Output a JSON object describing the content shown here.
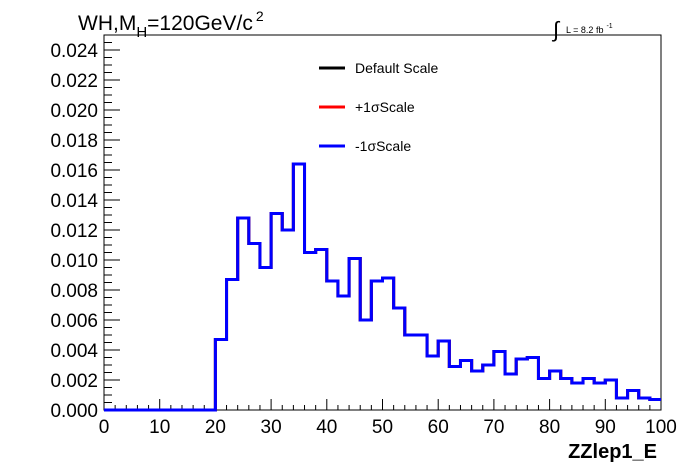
{
  "header": {
    "title_main": "WH,M",
    "title_sub": "H",
    "title_rest": "=120GeV/c",
    "title_sup": "2",
    "lumi_prefix": "∫",
    "lumi_text": "L = 8.2 fb",
    "lumi_sup": "-1"
  },
  "chart_data": {
    "type": "line",
    "style": "step-histogram",
    "xlabel": "ZZlep1_E",
    "ylabel": "",
    "xlim": [
      0,
      100
    ],
    "ylim": [
      0,
      0.025
    ],
    "x_ticks": [
      "0",
      "10",
      "20",
      "30",
      "40",
      "50",
      "60",
      "70",
      "80",
      "90",
      "100"
    ],
    "y_ticks": [
      "0.000",
      "0.002",
      "0.004",
      "0.006",
      "0.008",
      "0.010",
      "0.012",
      "0.014",
      "0.016",
      "0.018",
      "0.020",
      "0.022",
      "0.024"
    ],
    "grid": false,
    "legend_position": "top-right",
    "bin_edges": [
      0,
      2,
      4,
      6,
      8,
      10,
      12,
      14,
      16,
      18,
      20,
      22,
      24,
      26,
      28,
      30,
      32,
      34,
      36,
      38,
      40,
      42,
      44,
      46,
      48,
      50,
      52,
      54,
      56,
      58,
      60,
      62,
      64,
      66,
      68,
      70,
      72,
      74,
      76,
      78,
      80,
      82,
      84,
      86,
      88,
      90,
      92,
      94,
      96,
      98,
      100
    ],
    "series": [
      {
        "name": "Default Scale",
        "color": "#000000",
        "values": [
          0,
          0,
          0,
          0,
          0,
          0,
          0,
          0,
          0,
          0,
          0.0047,
          0.0087,
          0.0128,
          0.0111,
          0.0095,
          0.0131,
          0.012,
          0.0164,
          0.0105,
          0.0107,
          0.0086,
          0.0076,
          0.0101,
          0.006,
          0.0086,
          0.0088,
          0.0068,
          0.005,
          0.005,
          0.0036,
          0.0046,
          0.0029,
          0.0033,
          0.0026,
          0.003,
          0.0039,
          0.0024,
          0.0034,
          0.0035,
          0.0021,
          0.0026,
          0.0021,
          0.0018,
          0.0021,
          0.0018,
          0.002,
          0.0008,
          0.0013,
          0.0008,
          0.0007
        ]
      },
      {
        "name": "+1σScale",
        "color": "#ff0000",
        "values": [
          0,
          0,
          0,
          0,
          0,
          0,
          0,
          0,
          0,
          0,
          0.0047,
          0.0087,
          0.0128,
          0.0111,
          0.0095,
          0.0131,
          0.012,
          0.0164,
          0.0105,
          0.0107,
          0.0086,
          0.0076,
          0.0101,
          0.006,
          0.0086,
          0.0088,
          0.0068,
          0.005,
          0.005,
          0.0036,
          0.0046,
          0.0029,
          0.0033,
          0.0026,
          0.003,
          0.0039,
          0.0024,
          0.0034,
          0.0035,
          0.0021,
          0.0026,
          0.0021,
          0.0018,
          0.0021,
          0.0018,
          0.002,
          0.0008,
          0.0013,
          0.0008,
          0.0007
        ]
      },
      {
        "name": "-1σScale",
        "color": "#0000ff",
        "values": [
          0,
          0,
          0,
          0,
          0,
          0,
          0,
          0,
          0,
          0,
          0.0047,
          0.0087,
          0.0128,
          0.0111,
          0.0095,
          0.0131,
          0.012,
          0.0164,
          0.0105,
          0.0107,
          0.0086,
          0.0076,
          0.0101,
          0.006,
          0.0086,
          0.0088,
          0.0068,
          0.005,
          0.005,
          0.0036,
          0.0046,
          0.0029,
          0.0033,
          0.0026,
          0.003,
          0.0039,
          0.0024,
          0.0034,
          0.0035,
          0.0021,
          0.0026,
          0.0021,
          0.0018,
          0.0021,
          0.0018,
          0.002,
          0.0008,
          0.0013,
          0.0008,
          0.0007
        ]
      }
    ]
  }
}
